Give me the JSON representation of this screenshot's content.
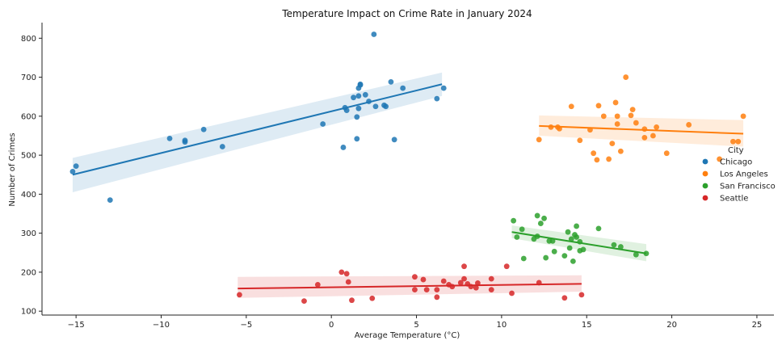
{
  "chart_data": {
    "type": "scatter",
    "title": "Temperature Impact on Crime Rate in January 2024",
    "xlabel": "Average Temperature (°C)",
    "ylabel": "Number of Crimes",
    "xlim": [
      -17,
      26
    ],
    "ylim": [
      90,
      840
    ],
    "xticks": [
      -15,
      -10,
      -5,
      0,
      5,
      10,
      15,
      20,
      25
    ],
    "yticks": [
      100,
      200,
      300,
      400,
      500,
      600,
      700,
      800
    ],
    "grid": false,
    "legend": {
      "title": "City",
      "placement": "right"
    },
    "series": [
      {
        "name": "Chicago",
        "color": "#1f77b4",
        "points": [
          [
            -15.2,
            458
          ],
          [
            -15,
            472
          ],
          [
            -13,
            385
          ],
          [
            -9.5,
            543
          ],
          [
            -8.6,
            534
          ],
          [
            -8.6,
            538
          ],
          [
            -7.5,
            566
          ],
          [
            -6.4,
            522
          ],
          [
            -0.5,
            580
          ],
          [
            0.7,
            520
          ],
          [
            0.8,
            622
          ],
          [
            0.9,
            615
          ],
          [
            1.3,
            648
          ],
          [
            1.5,
            542
          ],
          [
            1.5,
            598
          ],
          [
            1.6,
            620
          ],
          [
            1.6,
            652
          ],
          [
            1.6,
            672
          ],
          [
            1.7,
            680
          ],
          [
            1.7,
            682
          ],
          [
            2,
            655
          ],
          [
            2.2,
            638
          ],
          [
            2.6,
            625
          ],
          [
            2.5,
            810
          ],
          [
            3.1,
            628
          ],
          [
            3.2,
            625
          ],
          [
            3.5,
            688
          ],
          [
            3.7,
            540
          ],
          [
            4.2,
            672
          ],
          [
            6.2,
            645
          ],
          [
            6.6,
            672
          ]
        ],
        "fit": {
          "x": [
            -15.2,
            6.5
          ],
          "y": [
            450,
            682
          ],
          "ci_lower": [
            405,
            652
          ],
          "ci_upper": [
            493,
            712
          ]
        }
      },
      {
        "name": "Los Angeles",
        "color": "#ff7f0e",
        "points": [
          [
            12.2,
            540
          ],
          [
            12.9,
            572
          ],
          [
            13.3,
            572
          ],
          [
            13.4,
            568
          ],
          [
            14.1,
            625
          ],
          [
            14.6,
            538
          ],
          [
            15.2,
            565
          ],
          [
            15.4,
            505
          ],
          [
            15.6,
            488
          ],
          [
            15.7,
            627
          ],
          [
            16,
            600
          ],
          [
            16.3,
            490
          ],
          [
            16.5,
            530
          ],
          [
            16.7,
            635
          ],
          [
            16.8,
            580
          ],
          [
            16.8,
            600
          ],
          [
            17,
            510
          ],
          [
            17.3,
            700
          ],
          [
            17.6,
            602
          ],
          [
            17.7,
            617
          ],
          [
            17.9,
            583
          ],
          [
            18.4,
            545
          ],
          [
            18.4,
            567
          ],
          [
            18.9,
            550
          ],
          [
            19.1,
            572
          ],
          [
            19.7,
            505
          ],
          [
            21,
            578
          ],
          [
            22.8,
            490
          ],
          [
            23.6,
            535
          ],
          [
            23.9,
            535
          ],
          [
            24.2,
            600
          ]
        ],
        "fit": {
          "x": [
            12.2,
            24.2
          ],
          "y": [
            575,
            555
          ],
          "ci_lower": [
            550,
            522
          ],
          "ci_upper": [
            602,
            590
          ]
        }
      },
      {
        "name": "San Francisco",
        "color": "#2ca02c",
        "points": [
          [
            10.7,
            332
          ],
          [
            10.9,
            290
          ],
          [
            11.2,
            310
          ],
          [
            11.3,
            235
          ],
          [
            11.9,
            285
          ],
          [
            12.1,
            292
          ],
          [
            12.1,
            345
          ],
          [
            12.3,
            325
          ],
          [
            12.5,
            338
          ],
          [
            12.6,
            237
          ],
          [
            12.8,
            280
          ],
          [
            13,
            280
          ],
          [
            13.1,
            253
          ],
          [
            13.7,
            242
          ],
          [
            13.9,
            303
          ],
          [
            14,
            262
          ],
          [
            14.1,
            285
          ],
          [
            14.2,
            228
          ],
          [
            14.3,
            296
          ],
          [
            14.4,
            318
          ],
          [
            14.4,
            290
          ],
          [
            14.6,
            278
          ],
          [
            14.6,
            255
          ],
          [
            14.8,
            258
          ],
          [
            15.7,
            312
          ],
          [
            16.6,
            270
          ],
          [
            17,
            265
          ],
          [
            17.9,
            245
          ],
          [
            18.5,
            248
          ]
        ],
        "fit": {
          "x": [
            10.6,
            18.5
          ],
          "y": [
            303,
            248
          ],
          "ci_lower": [
            287,
            228
          ],
          "ci_upper": [
            320,
            272
          ]
        }
      },
      {
        "name": "Seattle",
        "color": "#d62728",
        "points": [
          [
            -5.4,
            142
          ],
          [
            -1.6,
            126
          ],
          [
            -0.8,
            168
          ],
          [
            0.6,
            200
          ],
          [
            0.9,
            196
          ],
          [
            1,
            175
          ],
          [
            1.2,
            128
          ],
          [
            2.4,
            133
          ],
          [
            4.9,
            188
          ],
          [
            4.9,
            155
          ],
          [
            5.4,
            181
          ],
          [
            5.6,
            155
          ],
          [
            6.2,
            155
          ],
          [
            6.2,
            136
          ],
          [
            6.6,
            177
          ],
          [
            6.9,
            168
          ],
          [
            7.1,
            163
          ],
          [
            7.6,
            173
          ],
          [
            7.8,
            183
          ],
          [
            7.8,
            215
          ],
          [
            8,
            170
          ],
          [
            8.2,
            163
          ],
          [
            8.5,
            160
          ],
          [
            8.6,
            172
          ],
          [
            9.4,
            183
          ],
          [
            9.4,
            155
          ],
          [
            10.3,
            215
          ],
          [
            10.6,
            146
          ],
          [
            12.2,
            173
          ],
          [
            13.7,
            134
          ],
          [
            14.7,
            142
          ]
        ],
        "fit": {
          "x": [
            -5.5,
            14.7
          ],
          "y": [
            158,
            170
          ],
          "ci_lower": [
            134,
            150
          ],
          "ci_upper": [
            188,
            192
          ]
        }
      }
    ]
  }
}
